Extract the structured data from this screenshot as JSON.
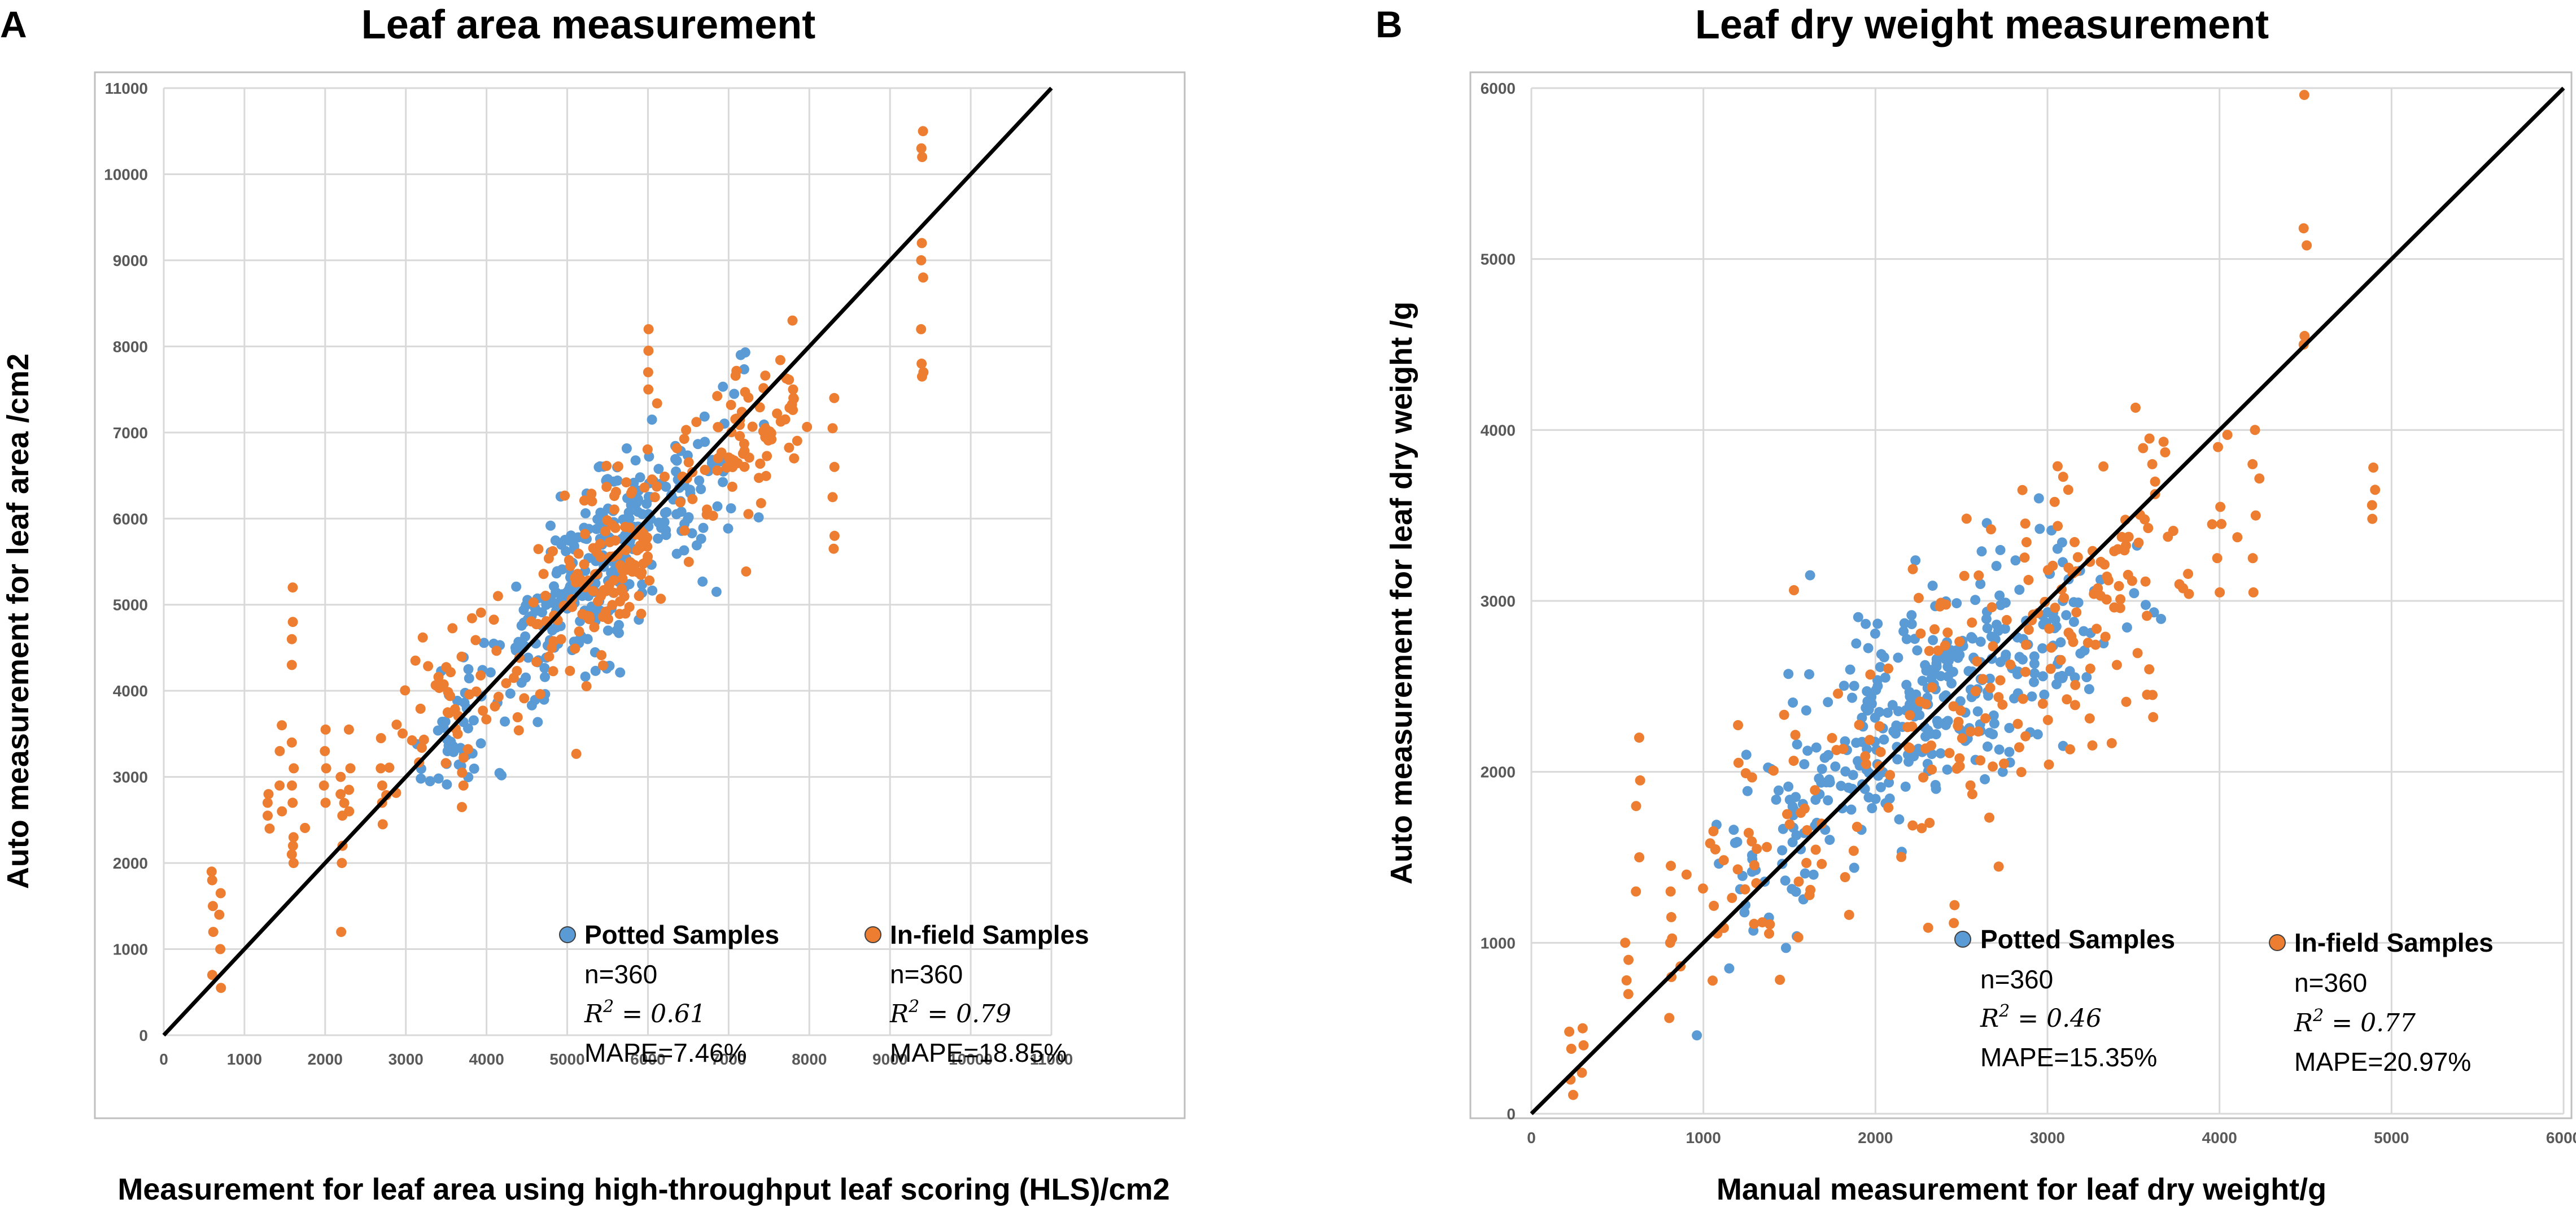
{
  "colors": {
    "potted": "#5b9bd5",
    "infield": "#ed7d31",
    "grid": "#d9d9d9",
    "frame": "#bfbfbf",
    "identity_line": "#000000"
  },
  "chart_data": [
    {
      "panel_letter": "A",
      "type": "scatter",
      "title": "Leaf area measurement",
      "xlabel": "Measurement for leaf area using high-throughput leaf scoring (HLS)/cm2",
      "ylabel": "Auto measurement for leaf area /cm2",
      "xlim": [
        0,
        11000
      ],
      "ylim": [
        0,
        11000
      ],
      "xticks": [
        "0",
        "1000",
        "2000",
        "3000",
        "4000",
        "5000",
        "6000",
        "7000",
        "8000",
        "9000",
        "10000",
        "11000"
      ],
      "yticks": [
        "0",
        "1000",
        "2000",
        "3000",
        "4000",
        "5000",
        "6000",
        "7000",
        "8000",
        "9000",
        "10000",
        "11000"
      ],
      "grid": true,
      "identity_line": [
        [
          0,
          0
        ],
        [
          11000,
          11000
        ]
      ],
      "legend": [
        {
          "series": "potted",
          "name": "Potted Samples",
          "n": "n=360",
          "r2_label": "R",
          "r2_sup": "2",
          "r2_value": " = 0.61",
          "mape": "MAPE=7.46%"
        },
        {
          "series": "infield",
          "name": "In-field Samples",
          "n": "n=360",
          "r2_label": "R",
          "r2_sup": "2",
          "r2_value": " = 0.79",
          "mape": "MAPE=18.85%"
        }
      ],
      "series": [
        {
          "name": "Potted Samples",
          "key": "potted",
          "n": 360,
          "clusters": [
            {
              "cx": 5200,
              "cy": 5250,
              "sx": 520,
              "sy": 460,
              "slope": 0.9,
              "count": 230
            },
            {
              "cx": 6100,
              "cy": 5950,
              "sx": 380,
              "sy": 420,
              "slope": 0.8,
              "count": 70
            },
            {
              "cx": 3700,
              "cy": 3700,
              "sx": 350,
              "sy": 380,
              "slope": 0.9,
              "count": 40
            },
            {
              "cx": 6900,
              "cy": 6700,
              "sx": 250,
              "sy": 500,
              "slope": 0.6,
              "count": 20
            }
          ],
          "points": [
            [
              7150,
              7900
            ],
            [
              6050,
              7150
            ],
            [
              6850,
              5150
            ],
            [
              3300,
              2950
            ]
          ]
        },
        {
          "name": "In-field Samples",
          "key": "infield",
          "n": 360,
          "clusters": [
            {
              "cx": 5400,
              "cy": 5300,
              "sx": 550,
              "sy": 550,
              "slope": 0.9,
              "count": 140
            },
            {
              "cx": 7200,
              "cy": 6900,
              "sx": 450,
              "sy": 450,
              "slope": 0.6,
              "count": 80
            },
            {
              "cx": 3500,
              "cy": 3750,
              "sx": 500,
              "sy": 450,
              "slope": 0.7,
              "count": 50
            }
          ],
          "stacks": [
            {
              "x": 600,
              "ys": [
                700,
                1200,
                1500,
                1800,
                1900
              ]
            },
            {
              "x": 700,
              "ys": [
                550,
                1000,
                1400,
                1650
              ]
            },
            {
              "x": 1300,
              "ys": [
                2400,
                2550,
                2700,
                2800
              ]
            },
            {
              "x": 1450,
              "ys": [
                2600,
                2900,
                3300,
                3600
              ]
            },
            {
              "x": 1600,
              "ys": [
                2000,
                2100,
                2200,
                2300,
                2700,
                2900,
                3100,
                3400,
                4300,
                4600,
                4800,
                5200
              ]
            },
            {
              "x": 2000,
              "ys": [
                2700,
                2900,
                3100,
                3300,
                3550
              ]
            },
            {
              "x": 2200,
              "ys": [
                1200,
                2000,
                2200,
                2550,
                2800,
                3000
              ]
            },
            {
              "x": 2300,
              "ys": [
                2600,
                2850,
                3100,
                3550
              ]
            },
            {
              "x": 2700,
              "ys": [
                2450,
                2700,
                2900,
                3100,
                3450
              ]
            },
            {
              "x": 3700,
              "ys": [
                2650,
                2900,
                3050
              ]
            },
            {
              "x": 8300,
              "ys": [
                5650,
                5800,
                6250,
                6600,
                7050,
                7400
              ]
            },
            {
              "x": 9400,
              "ys": [
                7650,
                7700,
                7800,
                8200,
                8800,
                9000,
                9200,
                10200,
                10300,
                10500
              ]
            },
            {
              "x": 7800,
              "ys": [
                6700,
                7400,
                7500,
                8300
              ]
            },
            {
              "x": 6000,
              "ys": [
                7500,
                7700,
                7950,
                8200
              ]
            }
          ]
        }
      ]
    },
    {
      "panel_letter": "B",
      "type": "scatter",
      "title": "Leaf dry weight measurement",
      "xlabel": "Manual measurement for leaf dry weight/g",
      "ylabel": "Auto measurement for leaf dry weight /g",
      "xlim": [
        0,
        6000
      ],
      "ylim": [
        0,
        6000
      ],
      "xticks": [
        "0",
        "1000",
        "2000",
        "3000",
        "4000",
        "5000",
        "6000"
      ],
      "yticks": [
        "0",
        "1000",
        "2000",
        "3000",
        "4000",
        "5000",
        "6000"
      ],
      "grid": true,
      "identity_line": [
        [
          0,
          0
        ],
        [
          6000,
          6000
        ]
      ],
      "legend": [
        {
          "series": "potted",
          "name": "Potted Samples",
          "n": "n=360",
          "r2_label": "R",
          "r2_sup": "2",
          "r2_value": " = 0.46",
          "mape": "MAPE=15.35%"
        },
        {
          "series": "infield",
          "name": "In-field Samples",
          "n": "n=360",
          "r2_label": "R",
          "r2_sup": "2",
          "r2_value": " = 0.77",
          "mape": "MAPE=20.97%"
        }
      ],
      "series": [
        {
          "name": "Potted Samples",
          "key": "potted",
          "n": 360,
          "clusters": [
            {
              "cx": 2400,
              "cy": 2450,
              "sx": 380,
              "sy": 330,
              "slope": 0.5,
              "count": 220
            },
            {
              "cx": 1700,
              "cy": 1950,
              "sx": 280,
              "sy": 330,
              "slope": 0.6,
              "count": 60
            },
            {
              "cx": 3000,
              "cy": 2750,
              "sx": 300,
              "sy": 330,
              "slope": 0.5,
              "count": 60
            },
            {
              "cx": 1250,
              "cy": 1300,
              "sx": 180,
              "sy": 250,
              "slope": 0.6,
              "count": 20
            }
          ],
          "points": [
            [
              1620,
              3150
            ],
            [
              2950,
              3600
            ],
            [
              1480,
              970
            ],
            [
              1150,
              850
            ]
          ]
        },
        {
          "name": "In-field Samples",
          "key": "infield",
          "n": 360,
          "clusters": [
            {
              "cx": 2600,
              "cy": 2550,
              "sx": 500,
              "sy": 420,
              "slope": 0.6,
              "count": 120
            },
            {
              "cx": 3400,
              "cy": 3100,
              "sx": 300,
              "sy": 400,
              "slope": 0.6,
              "count": 60
            },
            {
              "cx": 1500,
              "cy": 1600,
              "sx": 350,
              "sy": 400,
              "slope": 0.7,
              "count": 60
            }
          ],
          "stacks": [
            {
              "x": 230,
              "ys": [
                110,
                200,
                380,
                480
              ]
            },
            {
              "x": 300,
              "ys": [
                240,
                400,
                500
              ]
            },
            {
              "x": 560,
              "ys": [
                700,
                780,
                900,
                1000
              ]
            },
            {
              "x": 620,
              "ys": [
                1300,
                1500,
                1800,
                1950,
                2200
              ]
            },
            {
              "x": 800,
              "ys": [
                560,
                800,
                1000,
                1150,
                1300,
                1450
              ]
            },
            {
              "x": 4000,
              "ys": [
                3050,
                3250,
                3450,
                3550,
                3900
              ]
            },
            {
              "x": 4200,
              "ys": [
                3050,
                3250,
                3500,
                3800,
                4000
              ]
            },
            {
              "x": 4500,
              "ys": [
                4500,
                4550,
                5080,
                5180,
                5960
              ]
            },
            {
              "x": 4900,
              "ys": [
                3480,
                3560,
                3650,
                3780
              ]
            },
            {
              "x": 3600,
              "ys": [
                2320,
                2450,
                2600,
                3800,
                3950
              ]
            }
          ]
        }
      ]
    }
  ]
}
